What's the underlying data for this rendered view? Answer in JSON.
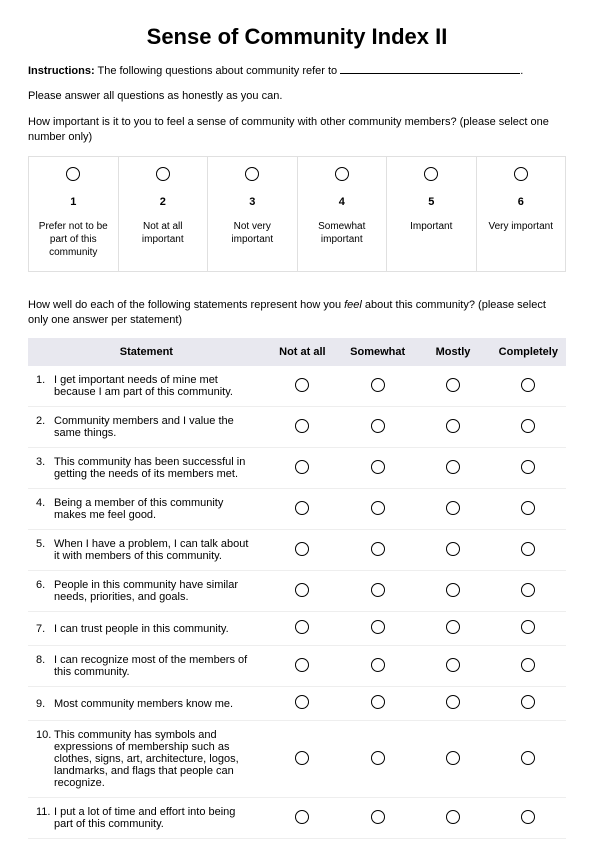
{
  "title": "Sense of Community Index II",
  "instructions_label": "Instructions:",
  "instructions_text": " The following questions about community refer to ",
  "instructions_period": ".",
  "honesty_text": "Please answer all questions as honestly as you can.",
  "importance_question": "How important is it to you to feel a sense of community with other community members? (please select one number only)",
  "scale": [
    {
      "num": "1",
      "label": "Prefer not to be part of this community"
    },
    {
      "num": "2",
      "label": "Not at all important"
    },
    {
      "num": "3",
      "label": "Not very important"
    },
    {
      "num": "4",
      "label": "Somewhat important"
    },
    {
      "num": "5",
      "label": "Important"
    },
    {
      "num": "6",
      "label": "Very important"
    }
  ],
  "statements_intro_pre": "How well do each of the following statements represent how you ",
  "statements_intro_italic": "feel",
  "statements_intro_post": " about this community? (please select only one answer per statement)",
  "table_headers": {
    "statement": "Statement",
    "c1": "Not at all",
    "c2": "Somewhat",
    "c3": "Mostly",
    "c4": "Completely"
  },
  "statements": [
    {
      "n": "1.",
      "text": "I get important needs of mine met because I am part of this community."
    },
    {
      "n": "2.",
      "text": "Community members and I value the same things."
    },
    {
      "n": "3.",
      "text": "This community has been successful in getting the needs of its members met."
    },
    {
      "n": "4.",
      "text": "Being a member of this community makes me feel good."
    },
    {
      "n": "5.",
      "text": "When I have a problem, I can talk about it with members of this community."
    },
    {
      "n": "6.",
      "text": "People in this community have similar needs, priorities, and goals."
    },
    {
      "n": "7.",
      "text": "I can trust people in this community."
    },
    {
      "n": "8.",
      "text": "I can recognize most of the members of this community."
    },
    {
      "n": "9.",
      "text": "Most community members know me."
    },
    {
      "n": "10.",
      "text": "This community has symbols and expressions of membership such as clothes, signs, art, architecture, logos, landmarks, and flags that people can recognize."
    },
    {
      "n": "11.",
      "text": "I put a lot of time and effort into being part of this community."
    }
  ],
  "colors": {
    "background": "#ffffff",
    "text": "#000000",
    "border_light": "#e0e0e0",
    "row_border": "#eeeeee",
    "header_bg": "#e8e8ef"
  }
}
